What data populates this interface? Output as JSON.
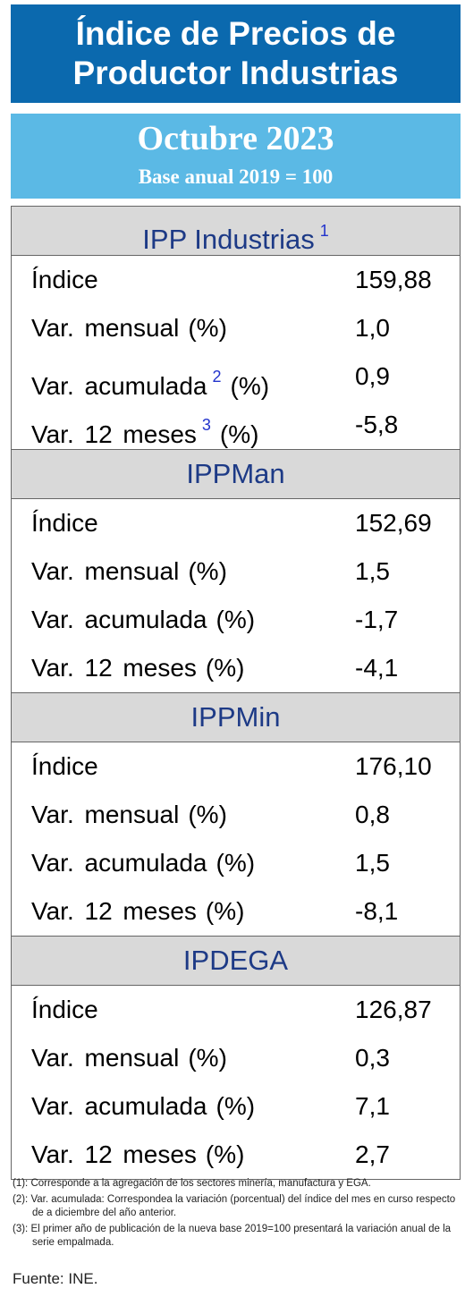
{
  "header": {
    "title_lines": [
      "Índice de Precios de",
      "Productor Industrias"
    ],
    "period": "Octubre 2023",
    "base": "Base anual 2019 = 100"
  },
  "sections": [
    {
      "name": "IPP Industrias",
      "note": "1",
      "rows": [
        {
          "label": "Índice",
          "value": "159,88"
        },
        {
          "label": "Var. mensual",
          "unit": "(%)",
          "value": "1,0"
        },
        {
          "label": "Var. acumulada",
          "note": "2",
          "unit": "(%)",
          "value": "0,9"
        },
        {
          "label": "Var. 12 meses",
          "note": "3",
          "unit": "(%)",
          "value": "-5,8"
        }
      ]
    },
    {
      "name": "IPPMan",
      "rows": [
        {
          "label": "Índice",
          "value": "152,69"
        },
        {
          "label": "Var. mensual",
          "unit": "(%)",
          "value": "1,5"
        },
        {
          "label": "Var. acumulada",
          "unit": "(%)",
          "value": "-1,7"
        },
        {
          "label": "Var. 12 meses",
          "unit": "(%)",
          "value": "-4,1"
        }
      ]
    },
    {
      "name": "IPPMin",
      "rows": [
        {
          "label": "Índice",
          "value": "176,10"
        },
        {
          "label": "Var. mensual",
          "unit": "(%)",
          "value": "0,8"
        },
        {
          "label": "Var. acumulada",
          "unit": "(%)",
          "value": "1,5"
        },
        {
          "label": "Var. 12 meses",
          "unit": "(%)",
          "value": "-8,1"
        }
      ]
    },
    {
      "name": "IPDEGA",
      "rows": [
        {
          "label": "Índice",
          "value": "126,87"
        },
        {
          "label": "Var. mensual",
          "unit": "(%)",
          "value": "0,3"
        },
        {
          "label": "Var. acumulada",
          "unit": "(%)",
          "value": "7,1"
        },
        {
          "label": "Var. 12 meses",
          "unit": "(%)",
          "value": "2,7"
        }
      ]
    }
  ],
  "footnotes": [
    "(1): Corresponde a la agregación de los sectores minería, manufactura y EGA.",
    "(2): Var. acumulada: Correspondea la variación (porcentual) del índice del mes en curso respecto de a diciembre del año anterior.",
    "(3): El primer año de publicación de la nueva base 2019=100 presentará la variación anual de la serie empalmada."
  ],
  "source": "Fuente: INE."
}
